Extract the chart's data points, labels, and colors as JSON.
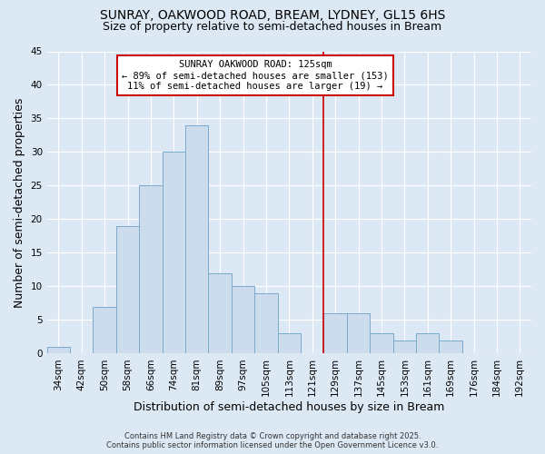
{
  "title": "SUNRAY, OAKWOOD ROAD, BREAM, LYDNEY, GL15 6HS",
  "subtitle": "Size of property relative to semi-detached houses in Bream",
  "xlabel": "Distribution of semi-detached houses by size in Bream",
  "ylabel": "Number of semi-detached properties",
  "categories": [
    "34sqm",
    "42sqm",
    "50sqm",
    "58sqm",
    "66sqm",
    "74sqm",
    "81sqm",
    "89sqm",
    "97sqm",
    "105sqm",
    "113sqm",
    "121sqm",
    "129sqm",
    "137sqm",
    "145sqm",
    "153sqm",
    "161sqm",
    "169sqm",
    "176sqm",
    "184sqm",
    "192sqm"
  ],
  "values": [
    1,
    0,
    7,
    19,
    25,
    30,
    34,
    12,
    10,
    9,
    3,
    0,
    6,
    6,
    3,
    2,
    3,
    2,
    0,
    0,
    0
  ],
  "bar_color": "#cddcec",
  "bar_edge_color": "#7aaacc",
  "vline_color": "#cc0000",
  "annotation_line1": "SUNRAY OAKWOOD ROAD: 125sqm",
  "annotation_line2": "← 89% of semi-detached houses are smaller (153)",
  "annotation_line3": "11% of semi-detached houses are larger (19) →",
  "box_edge_color": "#cc0000",
  "ylim": [
    0,
    45
  ],
  "yticks": [
    0,
    5,
    10,
    15,
    20,
    25,
    30,
    35,
    40,
    45
  ],
  "background_color": "#dde8f5",
  "grid_color": "#ffffff",
  "footer_line1": "Contains HM Land Registry data © Crown copyright and database right 2025.",
  "footer_line2": "Contains public sector information licensed under the Open Government Licence v3.0.",
  "title_fontsize": 10,
  "subtitle_fontsize": 9,
  "axis_label_fontsize": 9,
  "tick_fontsize": 7.5,
  "annotation_fontsize": 7.5,
  "footer_fontsize": 6
}
